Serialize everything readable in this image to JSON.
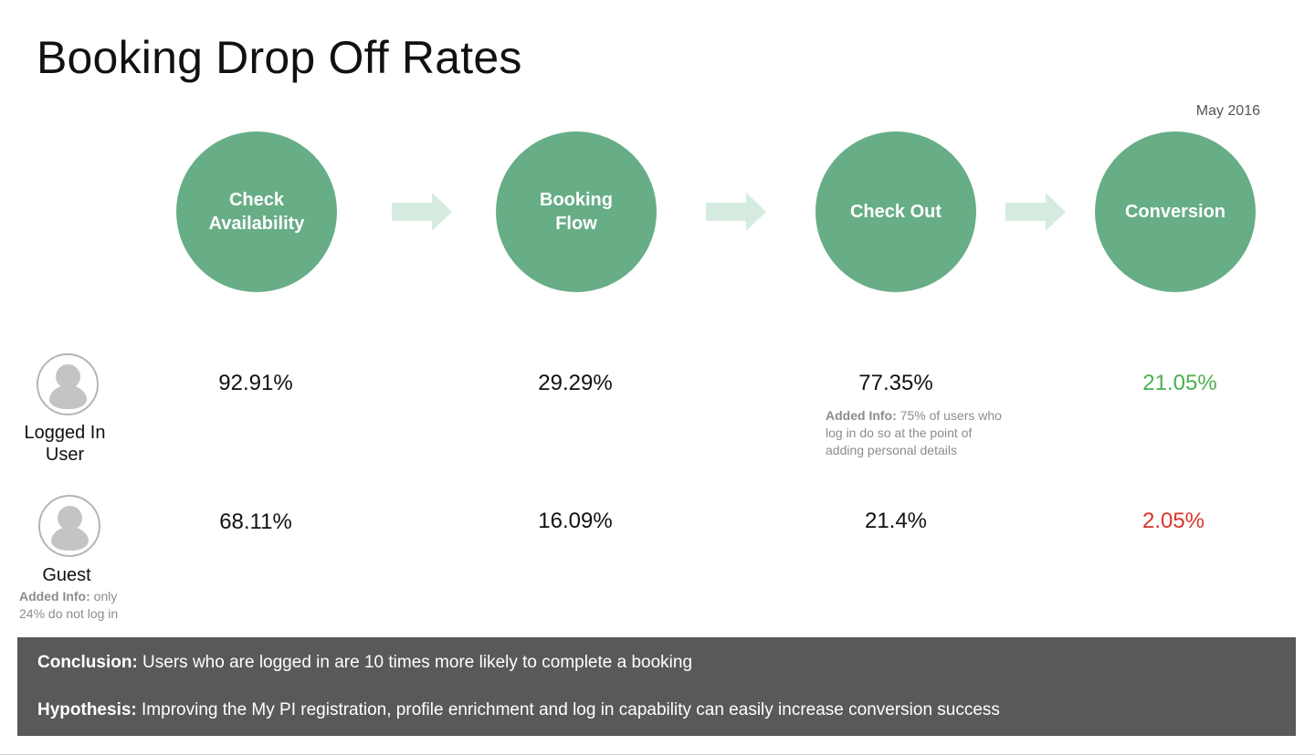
{
  "title": "Booking Drop Off Rates",
  "date": "May 2016",
  "colors": {
    "stage": "#67ad86",
    "arrow": "#d6ebe0",
    "conversion_good": "#4caf50",
    "conversion_bad": "#d9342b",
    "panel": "#595959"
  },
  "stages": [
    {
      "label": "Check Availability"
    },
    {
      "label": "Booking Flow"
    },
    {
      "label": "Check Out"
    },
    {
      "label": "Conversion"
    }
  ],
  "users": [
    {
      "label": "Logged In User",
      "icon": "user-avatar-icon",
      "values": [
        "92.91%",
        "29.29%",
        "77.35%",
        "21.05%"
      ],
      "checkout_note": {
        "prefix": "Added Info:",
        "text": " 75% of users who log in do so at the point of adding personal details"
      }
    },
    {
      "label": "Guest",
      "icon": "user-avatar-icon",
      "values": [
        "68.11%",
        "16.09%",
        "21.4%",
        "2.05%"
      ],
      "note": {
        "prefix": "Added Info:",
        "text": " only 24% do not log in"
      }
    }
  ],
  "panel": {
    "conclusion_label": "Conclusion:",
    "conclusion_text": " Users who are logged in are 10 times more likely to complete a booking",
    "hypothesis_label": "Hypothesis:",
    "hypothesis_text": " Improving the My PI registration, profile enrichment and log in capability can easily increase conversion success"
  }
}
